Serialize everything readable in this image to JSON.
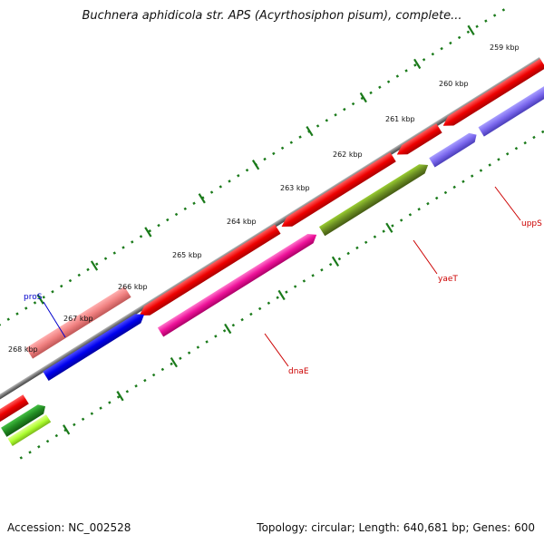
{
  "title": "Buchnera aphidicola str. APS (Acyrthosiphon pisum), complete...",
  "accession": "Accession: NC_002528",
  "summary": "Topology: circular; Length: 640,681 bp; Genes: 600",
  "ruler": {
    "ticks": [
      "259 kbp",
      "260 kbp",
      "261 kbp",
      "262 kbp",
      "263 kbp",
      "264 kbp",
      "265 kbp",
      "266 kbp",
      "267 kbp",
      "268 kbp"
    ]
  },
  "genes": {
    "proS": "proS",
    "dnaE": "dnaE",
    "yaeT": "yaeT",
    "uppS": "uppS"
  },
  "colors": {
    "red": "#ee0000",
    "magenta": "#ee1199",
    "olive": "#6b8e23",
    "purple": "#7b68ee",
    "blue": "#0000ee",
    "salmon": "#f08080",
    "green": "#228b22",
    "lime": "#adff2f",
    "tick": "#1a7a1a",
    "backbone": "#777777"
  }
}
